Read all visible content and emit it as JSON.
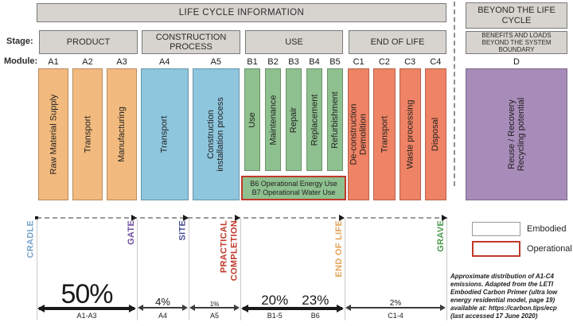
{
  "lci_title": "LIFE CYCLE INFORMATION",
  "beyond_title": "BEYOND THE LIFE\nCYCLE",
  "stage_row_label": "Stage:",
  "module_row_label": "Module:",
  "groups": [
    {
      "stage": "PRODUCT",
      "modules": [
        {
          "code": "A1",
          "name": "Raw Material Supply"
        },
        {
          "code": "A2",
          "name": "Transport"
        },
        {
          "code": "A3",
          "name": "Manufacturing"
        }
      ]
    },
    {
      "stage": "CONSTRUCTION\nPROCESS",
      "modules": [
        {
          "code": "A4",
          "name": "Transport"
        },
        {
          "code": "A5",
          "name": "Construction\ninstallation process"
        }
      ]
    },
    {
      "stage": "USE",
      "modules": [
        {
          "code": "B1",
          "name": "Use"
        },
        {
          "code": "B2",
          "name": "Maintenance"
        },
        {
          "code": "B3",
          "name": "Repair"
        },
        {
          "code": "B4",
          "name": "Replacement"
        },
        {
          "code": "B5",
          "name": "Refurbishment"
        }
      ]
    },
    {
      "stage": "END OF LIFE",
      "modules": [
        {
          "code": "C1",
          "name": "De-construction\nDemolition"
        },
        {
          "code": "C2",
          "name": "Transport"
        },
        {
          "code": "C3",
          "name": "Waste processing"
        },
        {
          "code": "C4",
          "name": "Disposal"
        }
      ]
    }
  ],
  "beyond": {
    "stage": "BENEFITS AND LOADS\nBEYOND THE SYSTEM\nBOUNDARY",
    "module_code": "D",
    "module_name": "Reuse / Recovery\nRecycling potential"
  },
  "operational_box": {
    "line1": "B6 Operational Energy Use",
    "line2": "B7 Operational Water Use"
  },
  "milestones": [
    {
      "label": "CRADLE",
      "color": "#7ba4cc"
    },
    {
      "label": "GATE",
      "color": "#6e4f9e"
    },
    {
      "label": "SITE",
      "color": "#474e94"
    },
    {
      "label": "PRACTICAL\nCOMPLETION",
      "color": "#c0392b"
    },
    {
      "label": "END OF LIFE",
      "color": "#e3a45a"
    },
    {
      "label": "GRAVE",
      "color": "#4d9a4d"
    }
  ],
  "distribution": {
    "segments": [
      {
        "pct": "50%",
        "label": "A1-A3"
      },
      {
        "pct": "4%",
        "label": "A4"
      },
      {
        "pct": "1%",
        "label": "A5"
      },
      {
        "pct_left": "20%",
        "label_left": "B1-5",
        "pct_right": "23%",
        "label_right": "B6"
      },
      {
        "pct": "2%",
        "label": "C1-4"
      }
    ]
  },
  "legend": [
    {
      "label": "Embodied"
    },
    {
      "label": "Operational"
    }
  ],
  "note": "Approximate distribution of A1-C4\nemissions. Adapted from the LETI\nEmbodied Carbon Primer (ultra low\nenergy residential model, page 19)\navailable at: https://carbon.tips/ecp\n(last accessed 17 June 2020)",
  "colors": {
    "product": "#f2ba7e",
    "construction": "#8ec6de",
    "use": "#8fc08f",
    "end_of_life": "#ef8365",
    "beyond": "#a78bb8",
    "operational_accent": "#c0392b"
  }
}
